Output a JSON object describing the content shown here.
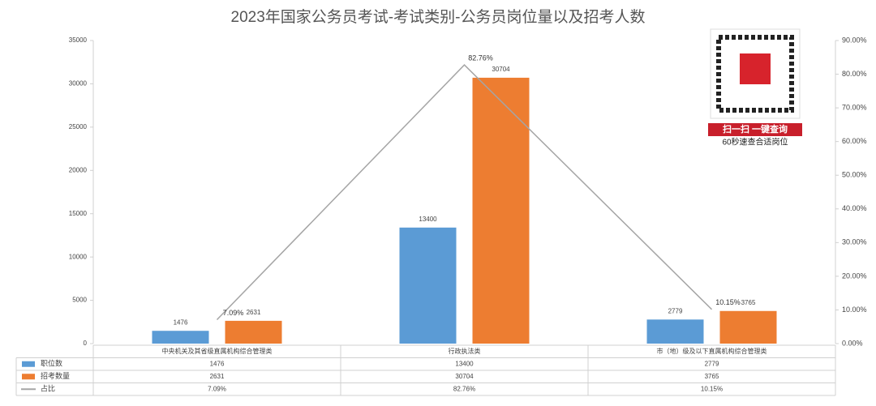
{
  "chart_data": {
    "type": "bar",
    "title": "2023年国家公务员考试-考试类别-公务员岗位量以及招考人数",
    "categories": [
      "中央机关及其省级直属机构综合管理类",
      "行政执法类",
      "市（地）级及以下直属机构综合管理类"
    ],
    "series": [
      {
        "name": "职位数",
        "color": "#5b9bd5",
        "type": "bar",
        "values": [
          1476,
          13400,
          2779
        ]
      },
      {
        "name": "招考数量",
        "color": "#ed7d31",
        "type": "bar",
        "values": [
          2631,
          30704,
          3765
        ]
      },
      {
        "name": "占比",
        "color": "#a5a5a5",
        "type": "line",
        "axis": "y2",
        "values": [
          7.09,
          82.76,
          10.15
        ],
        "value_labels": [
          "7.09%",
          "82.76%",
          "10.15%"
        ]
      }
    ],
    "ylim": [
      0,
      35000
    ],
    "yticks": [
      0,
      5000,
      10000,
      15000,
      20000,
      25000,
      30000,
      35000
    ],
    "y2lim": [
      0,
      90
    ],
    "y2ticks": [
      {
        "value": 0,
        "label": "0.00%"
      },
      {
        "value": 10,
        "label": "10.00%"
      },
      {
        "value": 20,
        "label": "20.00%"
      },
      {
        "value": 30,
        "label": "30.00%"
      },
      {
        "value": 40,
        "label": "40.00%"
      },
      {
        "value": 50,
        "label": "50.00%"
      },
      {
        "value": 60,
        "label": "60.00%"
      },
      {
        "value": 70,
        "label": "70.00%"
      },
      {
        "value": 80,
        "label": "80.00%"
      },
      {
        "value": 90,
        "label": "90.00%"
      }
    ],
    "grid": false,
    "annotations": [
      "扫一扫 一键查询",
      "60秒速查合适岗位"
    ]
  }
}
